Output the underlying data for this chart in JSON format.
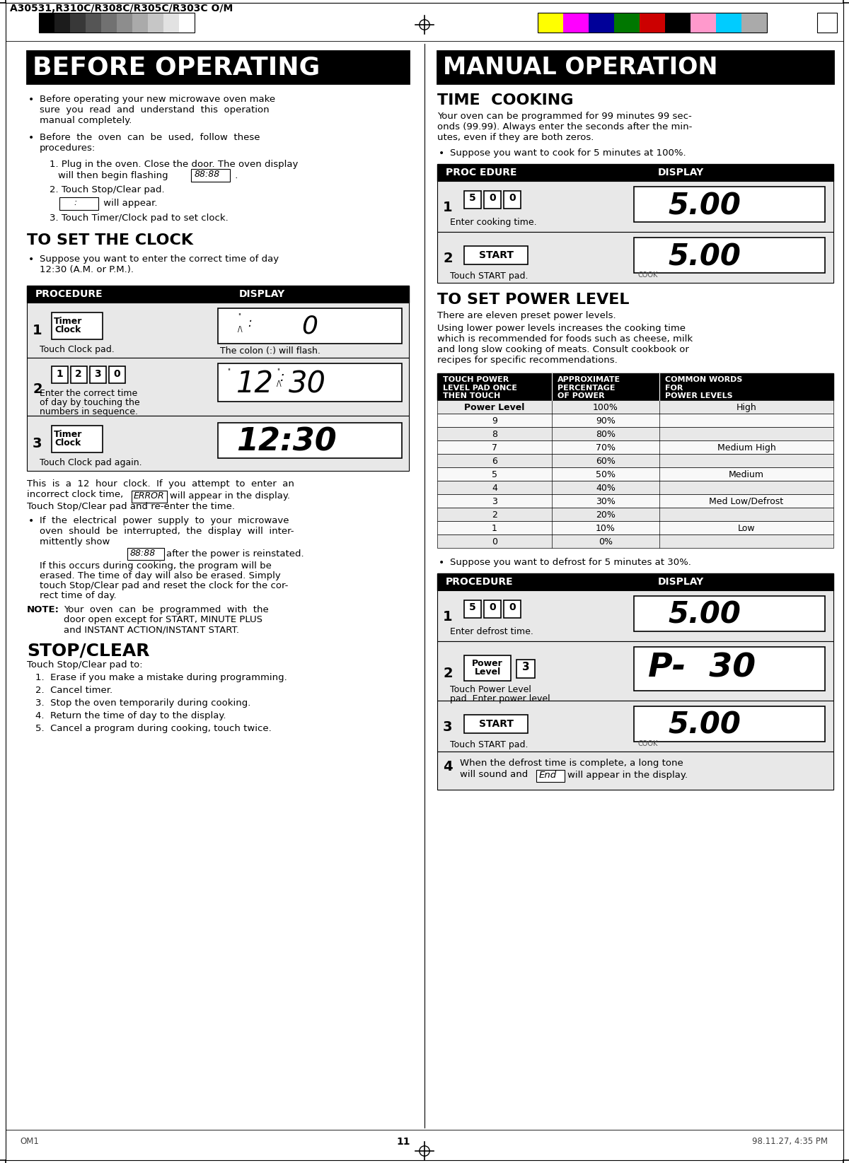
{
  "page_title_header": "A30531,R310C/R308C/R305C/R303C O/M",
  "left_section_title": "BEFORE OPERATING",
  "right_section_title": "MANUAL OPERATION",
  "clock_section_title": "TO SET THE CLOCK",
  "power_section_title": "TO SET POWER LEVEL",
  "time_cooking_title": "TIME  COOKING",
  "stop_clear_title": "STOP/CLEAR",
  "bg_color": "#ffffff",
  "footer_left": "OM1",
  "footer_center": "11",
  "footer_right": "98.11.27, 4:35 PM",
  "page_number": "11",
  "grayscale_colors": [
    "#000000",
    "#1c1c1c",
    "#383838",
    "#555555",
    "#717171",
    "#8d8d8d",
    "#aaaaaa",
    "#c6c6c6",
    "#e2e2e2",
    "#ffffff"
  ],
  "color_swatches": [
    "#ffff00",
    "#ff00ff",
    "#000099",
    "#007700",
    "#cc0000",
    "#000000",
    "#ff99cc",
    "#00ccff",
    "#aaaaaa"
  ]
}
